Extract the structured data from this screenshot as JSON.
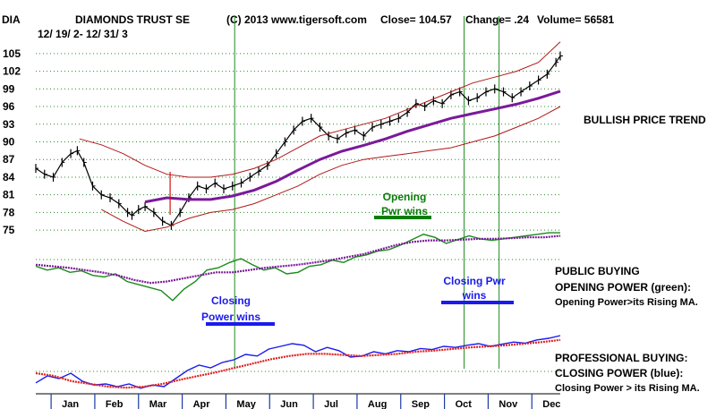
{
  "header": {
    "symbol": "DIA",
    "name": "DIAMONDS TRUST SE",
    "date_range": "12/ 19/ 2- 12/ 31/ 3",
    "copyright": "(C) 2013 www.tigersoft.com",
    "close": "Close=  104.57",
    "change": "Change= .24",
    "volume": "Volume=  56581"
  },
  "chart_data": {
    "type": "line",
    "title": "DIAMONDS TRUST SE",
    "x_categories": [
      "Jan",
      "Feb",
      "Mar",
      "Apr",
      "May",
      "Jun",
      "Jul",
      "Aug",
      "Sep",
      "Oct",
      "Nov",
      "Dec"
    ],
    "y_ticks": [
      75,
      78,
      81,
      84,
      87,
      90,
      93,
      96,
      99,
      102,
      105
    ],
    "ylim": [
      73.5,
      106.5
    ],
    "x_unit": "months since Dec 19 2002 (0 = Dec 19, 12 = Dec 31 2003)",
    "series": [
      {
        "name": "price",
        "color": "#000000",
        "x": [
          0,
          0.2,
          0.4,
          0.6,
          0.8,
          0.95,
          1.1,
          1.3,
          1.5,
          1.7,
          1.9,
          2.1,
          2.2,
          2.35,
          2.5,
          2.7,
          2.9,
          3.1,
          3.3,
          3.5,
          3.7,
          3.9,
          4.1,
          4.3,
          4.5,
          4.7,
          4.9,
          5.1,
          5.3,
          5.5,
          5.7,
          5.9,
          6.1,
          6.3,
          6.5,
          6.7,
          6.9,
          7.1,
          7.3,
          7.5,
          7.7,
          7.9,
          8.1,
          8.3,
          8.5,
          8.7,
          8.9,
          9.1,
          9.3,
          9.5,
          9.7,
          9.9,
          10.1,
          10.3,
          10.5,
          10.7,
          10.9,
          11.1,
          11.3,
          11.5,
          11.7,
          11.9,
          12.0
        ],
        "y": [
          85.5,
          84.5,
          84,
          86.5,
          88,
          88.5,
          86.5,
          82.5,
          81,
          80.5,
          79.5,
          78,
          77.5,
          78.5,
          79,
          78,
          76.5,
          75.8,
          78,
          80.5,
          82.5,
          82,
          83,
          82,
          82.5,
          83,
          84,
          85,
          86,
          88,
          90,
          92,
          93.5,
          94,
          92.5,
          91,
          90.5,
          91.5,
          92,
          91,
          92.5,
          93,
          93.5,
          94,
          95,
          96.5,
          96,
          97,
          96.5,
          98,
          98.5,
          97,
          97.5,
          98.5,
          99,
          98.5,
          97.5,
          98.5,
          99.5,
          100.5,
          101.5,
          103.5,
          104.6
        ]
      },
      {
        "name": "moving-average",
        "color": "#7a1a9a",
        "x": [
          2.5,
          3.0,
          3.5,
          4.0,
          4.5,
          5.0,
          5.5,
          6.0,
          6.5,
          7.0,
          7.5,
          8.0,
          8.5,
          9.0,
          9.5,
          10.0,
          10.5,
          11.0,
          11.5,
          12.0
        ],
        "y": [
          79.8,
          80.5,
          80.2,
          80.2,
          80.8,
          81.8,
          83.3,
          85.2,
          87,
          88.4,
          89.4,
          90.5,
          91.8,
          92.9,
          94,
          94.8,
          95.6,
          96.4,
          97.4,
          98.6
        ]
      },
      {
        "name": "upper-band",
        "color": "#b01818",
        "x": [
          1.0,
          1.5,
          2.0,
          2.5,
          3.0,
          3.5,
          4.0,
          4.5,
          5.0,
          5.5,
          6.0,
          6.5,
          7.0,
          7.5,
          8.0,
          8.5,
          9.0,
          9.5,
          10.0,
          10.5,
          11.0,
          11.5,
          12.0
        ],
        "y": [
          90.5,
          89.5,
          88,
          86,
          84.5,
          84,
          84,
          84.5,
          85.5,
          87,
          89,
          91,
          92,
          93,
          94,
          95.5,
          97,
          98.5,
          100,
          101,
          102,
          103.5,
          107
        ]
      },
      {
        "name": "lower-band",
        "color": "#b01818",
        "x": [
          1.5,
          2.0,
          2.5,
          3.0,
          3.5,
          4.0,
          4.5,
          5.0,
          5.5,
          6.0,
          6.5,
          7.0,
          7.5,
          8.0,
          8.5,
          9.0,
          9.5,
          10.0,
          10.5,
          11.0,
          11.5,
          12.0
        ],
        "y": [
          78.5,
          76.5,
          74.8,
          75.5,
          77,
          78,
          78.5,
          79.5,
          81,
          82.5,
          84.5,
          86,
          87,
          87.5,
          88,
          88.5,
          89,
          90,
          91,
          92.5,
          94,
          96
        ]
      }
    ],
    "markers": [
      {
        "label": "",
        "month_index": 5,
        "note": "buy signal arrow at Mar"
      }
    ],
    "vertical_signal_lines": [
      4.55,
      9.8,
      10.6
    ],
    "annotations": [
      {
        "text_lines": [
          "Opening",
          "Pwr wins"
        ],
        "color": "#0a7d0a"
      },
      {
        "text_lines": [
          "Closing",
          "Power wins"
        ],
        "color": "#1a1aee"
      },
      {
        "text_lines": [
          "Closing Pwr",
          "wins"
        ],
        "color": "#1a1aee"
      }
    ],
    "side_labels": {
      "trend": "BULLISH PRICE TREND",
      "public_title": "PUBLIC BUYING",
      "public_line1": "OPENING POWER (green):",
      "public_line2": "Opening Power>its Rising MA.",
      "pro_title": "PROFESSIONAL BUYING:",
      "pro_line1": "CLOSING POWER (blue):",
      "pro_line2": "Closing Power > its Rising MA."
    },
    "indicators": [
      {
        "name": "opening-power",
        "color": "#1a8a1a",
        "y": [
          0.5,
          0.45,
          0.48,
          0.42,
          0.44,
          0.38,
          0.36,
          0.4,
          0.3,
          0.26,
          0.22,
          0.18,
          0.05,
          0.2,
          0.3,
          0.45,
          0.48,
          0.55,
          0.6,
          0.52,
          0.45,
          0.48,
          0.4,
          0.42,
          0.5,
          0.52,
          0.58,
          0.55,
          0.62,
          0.65,
          0.7,
          0.72,
          0.78,
          0.85,
          0.92,
          0.88,
          0.8,
          0.85,
          0.9,
          0.86,
          0.84,
          0.86,
          0.88,
          0.9,
          0.92,
          0.94,
          0.94
        ]
      },
      {
        "name": "opening-power-ma",
        "color": "#7a1a9a",
        "y": [
          0.52,
          0.5,
          0.48,
          0.45,
          0.42,
          0.38,
          0.32,
          0.28,
          0.3,
          0.34,
          0.38,
          0.42,
          0.42,
          0.45,
          0.48,
          0.5,
          0.52,
          0.55,
          0.58,
          0.62,
          0.66,
          0.72,
          0.78,
          0.82,
          0.84,
          0.84,
          0.85,
          0.86,
          0.86,
          0.87,
          0.88,
          0.88,
          0.9
        ]
      },
      {
        "name": "closing-power",
        "color": "#1a1aee",
        "y": [
          0.12,
          0.25,
          0.2,
          0.3,
          0.15,
          0.08,
          0.1,
          0.05,
          0.1,
          0.02,
          0.08,
          0.05,
          0.2,
          0.35,
          0.45,
          0.4,
          0.5,
          0.55,
          0.65,
          0.62,
          0.75,
          0.8,
          0.85,
          0.82,
          0.7,
          0.78,
          0.72,
          0.6,
          0.62,
          0.7,
          0.66,
          0.72,
          0.7,
          0.76,
          0.74,
          0.8,
          0.78,
          0.82,
          0.85,
          0.8,
          0.84,
          0.88,
          0.86,
          0.92,
          0.95,
          1.0
        ]
      },
      {
        "name": "closing-power-ma",
        "color": "#e02020",
        "y": [
          0.3,
          0.25,
          0.15,
          0.1,
          0.05,
          0.03,
          0.05,
          0.1,
          0.18,
          0.25,
          0.32,
          0.4,
          0.48,
          0.56,
          0.62,
          0.66,
          0.66,
          0.64,
          0.62,
          0.64,
          0.66,
          0.7,
          0.72,
          0.75,
          0.78,
          0.8,
          0.82,
          0.85,
          0.88,
          0.92
        ]
      }
    ]
  }
}
